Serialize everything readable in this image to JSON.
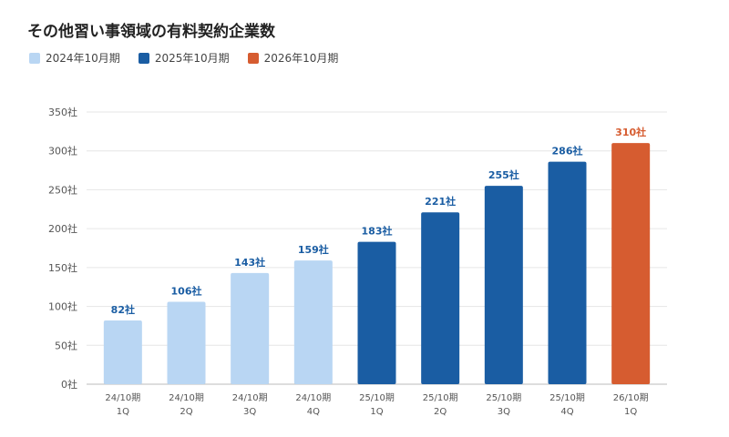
{
  "colors": {
    "fy2024": "#b9d6f3",
    "fy2025": "#1a5da3",
    "fy2026": "#d65c30"
  },
  "chart_data": {
    "type": "bar",
    "title": "その他習い事領域の有料契約企業数",
    "categories": [
      [
        "24/10期",
        "1Q"
      ],
      [
        "24/10期",
        "2Q"
      ],
      [
        "24/10期",
        "3Q"
      ],
      [
        "24/10期",
        "4Q"
      ],
      [
        "25/10期",
        "1Q"
      ],
      [
        "25/10期",
        "2Q"
      ],
      [
        "25/10期",
        "3Q"
      ],
      [
        "25/10期",
        "4Q"
      ],
      [
        "26/10期",
        "1Q"
      ]
    ],
    "values": [
      82,
      106,
      143,
      159,
      183,
      221,
      255,
      286,
      310
    ],
    "value_labels": [
      "82社",
      "106社",
      "143社",
      "159社",
      "183社",
      "221社",
      "255社",
      "286社",
      "310社"
    ],
    "series_index": [
      0,
      0,
      0,
      0,
      1,
      1,
      1,
      1,
      2
    ],
    "legend": [
      {
        "name": "2024年10月期",
        "color_key": "fy2024"
      },
      {
        "name": "2025年10月期",
        "color_key": "fy2025"
      },
      {
        "name": "2026年10月期",
        "color_key": "fy2026"
      }
    ],
    "y_ticks": [
      "0社",
      "50社",
      "100社",
      "150社",
      "200社",
      "250社",
      "300社",
      "350社"
    ],
    "ylim": [
      0,
      350
    ],
    "grid": true,
    "legend_position": "top-left"
  }
}
